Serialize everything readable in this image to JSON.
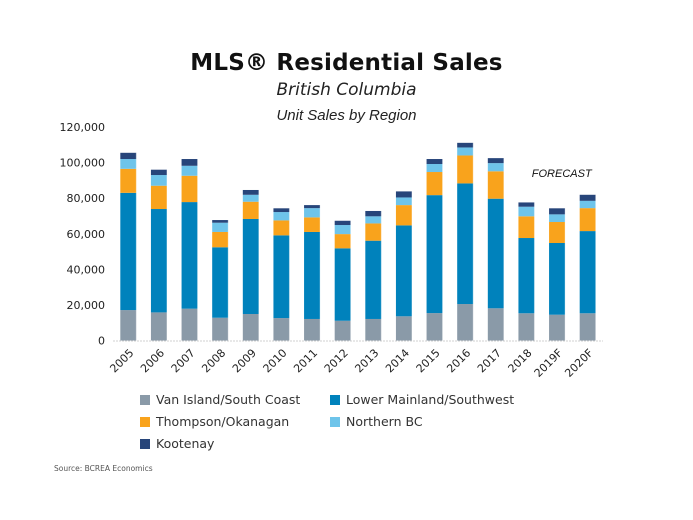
{
  "header": {
    "title": "MLS® Residential Sales",
    "subtitle": "British Columbia"
  },
  "source": "Source: BCREA Economics",
  "chart_data": {
    "type": "bar",
    "stacked": true,
    "title": "Unit Sales by Region",
    "xlabel": "",
    "ylabel": "",
    "ylim": [
      0,
      120000
    ],
    "yticks": [
      0,
      20000,
      40000,
      60000,
      80000,
      100000,
      120000
    ],
    "ytick_labels": [
      "0",
      "20,000",
      "40,000",
      "60,000",
      "80,000",
      "100,000",
      "120,000"
    ],
    "grid": false,
    "legend_position": "bottom",
    "categories": [
      "2005",
      "2006",
      "2007",
      "2008",
      "2009",
      "2010",
      "2011",
      "2012",
      "2013",
      "2014",
      "2015",
      "2016",
      "2017",
      "2018",
      "2019F",
      "2020F"
    ],
    "series": [
      {
        "name": "Van Island/South Coast",
        "color": "#8a9aa8",
        "values": [
          17100,
          15800,
          17900,
          12800,
          14900,
          12600,
          12100,
          11100,
          12100,
          13600,
          15400,
          20500,
          18100,
          15300,
          14500,
          15300
        ]
      },
      {
        "name": "Lower Mainland/Southwest",
        "color": "#0082bc",
        "values": [
          65900,
          58100,
          59900,
          39600,
          53400,
          46500,
          48900,
          40700,
          44000,
          51100,
          66300,
          67800,
          61600,
          42300,
          40300,
          46200
        ]
      },
      {
        "name": "Thompson/Okanagan",
        "color": "#f9a31c",
        "values": [
          13500,
          13100,
          14800,
          8600,
          9700,
          8400,
          8200,
          8000,
          9700,
          11400,
          13000,
          15700,
          15400,
          12200,
          11800,
          12900
        ]
      },
      {
        "name": "Northern BC",
        "color": "#6ec4ea",
        "values": [
          5500,
          6000,
          5600,
          5200,
          3900,
          4700,
          5200,
          5100,
          4000,
          4300,
          4500,
          4500,
          4600,
          5400,
          4300,
          4100
        ]
      },
      {
        "name": "Kootenay",
        "color": "#27457a",
        "values": [
          3500,
          3000,
          3800,
          1500,
          2700,
          2100,
          1700,
          2400,
          3000,
          3400,
          2800,
          2600,
          2800,
          2400,
          3400,
          3400
        ]
      }
    ],
    "annotations": [
      {
        "text": "FORECAST",
        "x": "2020F"
      }
    ]
  }
}
